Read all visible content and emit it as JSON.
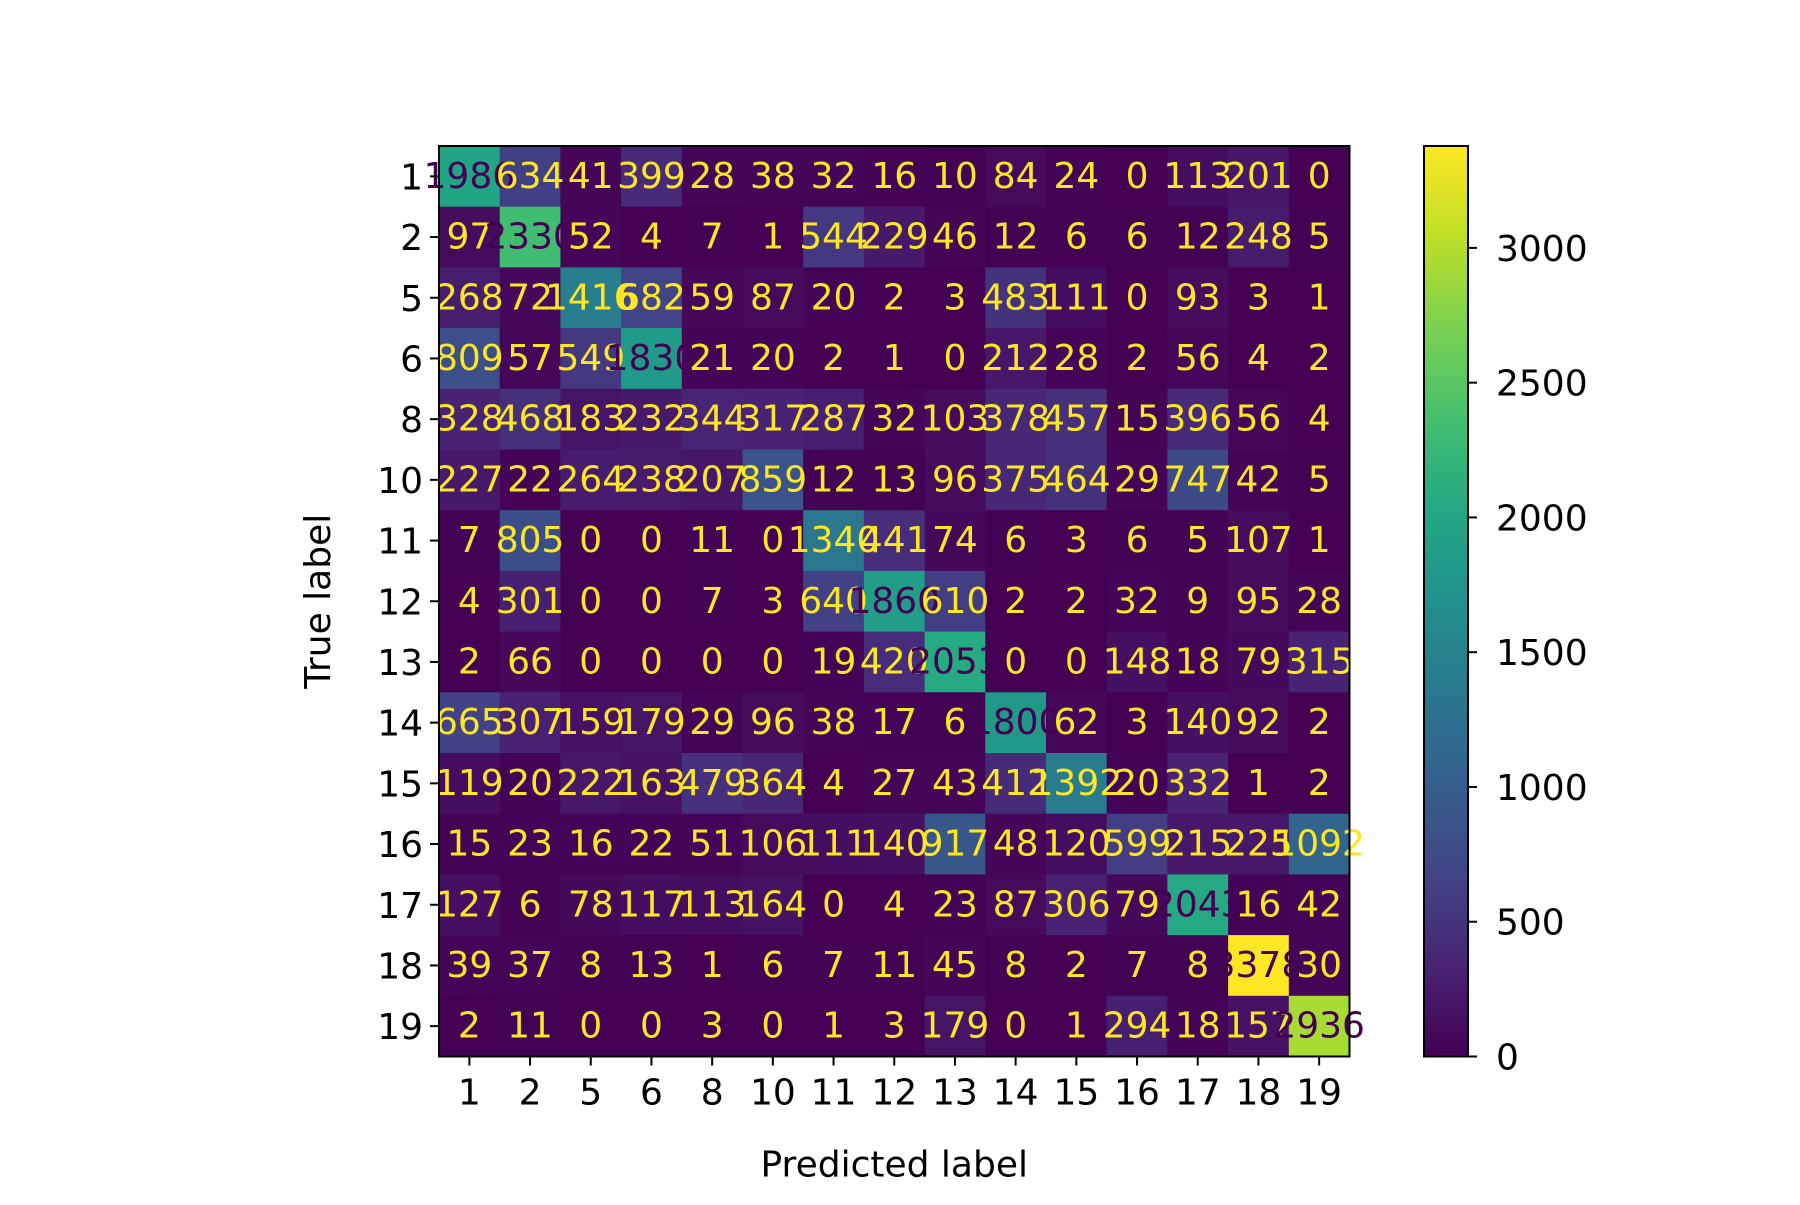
{
  "chart_data": {
    "type": "heatmap",
    "title": "",
    "xlabel": "Predicted label",
    "ylabel": "True label",
    "x_categories": [
      "1",
      "2",
      "5",
      "6",
      "8",
      "10",
      "11",
      "12",
      "13",
      "14",
      "15",
      "16",
      "17",
      "18",
      "19"
    ],
    "y_categories": [
      "1",
      "2",
      "5",
      "6",
      "8",
      "10",
      "11",
      "12",
      "13",
      "14",
      "15",
      "16",
      "17",
      "18",
      "19"
    ],
    "values": [
      [
        1986,
        634,
        41,
        399,
        28,
        38,
        32,
        16,
        10,
        84,
        24,
        0,
        113,
        201,
        0
      ],
      [
        97,
        2330,
        52,
        4,
        7,
        1,
        544,
        229,
        46,
        12,
        6,
        6,
        12,
        248,
        5
      ],
      [
        268,
        72,
        1416,
        682,
        59,
        87,
        20,
        2,
        3,
        483,
        111,
        0,
        93,
        3,
        1
      ],
      [
        809,
        57,
        549,
        1830,
        21,
        20,
        2,
        1,
        0,
        212,
        28,
        2,
        56,
        4,
        2
      ],
      [
        328,
        468,
        183,
        232,
        344,
        317,
        287,
        32,
        103,
        378,
        457,
        15,
        396,
        56,
        4
      ],
      [
        227,
        22,
        264,
        238,
        207,
        859,
        12,
        13,
        96,
        375,
        464,
        29,
        747,
        42,
        5
      ],
      [
        7,
        805,
        0,
        0,
        11,
        0,
        1340,
        441,
        74,
        6,
        3,
        6,
        5,
        107,
        1
      ],
      [
        4,
        301,
        0,
        0,
        7,
        3,
        640,
        1860,
        610,
        2,
        2,
        32,
        9,
        95,
        28
      ],
      [
        2,
        66,
        0,
        0,
        0,
        0,
        19,
        420,
        2053,
        0,
        0,
        148,
        18,
        79,
        315
      ],
      [
        665,
        307,
        159,
        179,
        29,
        96,
        38,
        17,
        6,
        1800,
        62,
        3,
        140,
        92,
        2
      ],
      [
        119,
        20,
        222,
        163,
        479,
        364,
        4,
        27,
        43,
        412,
        1392,
        20,
        332,
        1,
        2
      ],
      [
        15,
        23,
        16,
        22,
        51,
        106,
        111,
        140,
        917,
        48,
        120,
        599,
        215,
        225,
        1092
      ],
      [
        127,
        6,
        78,
        117,
        113,
        164,
        0,
        4,
        23,
        87,
        306,
        79,
        2043,
        16,
        42
      ],
      [
        39,
        37,
        8,
        13,
        1,
        6,
        7,
        11,
        45,
        8,
        2,
        7,
        8,
        3378,
        30
      ],
      [
        2,
        11,
        0,
        0,
        3,
        0,
        1,
        3,
        179,
        0,
        1,
        294,
        18,
        157,
        2936
      ]
    ],
    "colormap": "viridis",
    "value_range": [
      0,
      3378
    ],
    "colorbar_ticks": [
      "0",
      "500",
      "1000",
      "1500",
      "2000",
      "2500",
      "3000"
    ],
    "colorbar_tick_values": [
      0,
      500,
      1000,
      1500,
      2000,
      2500,
      3000
    ],
    "grid": false,
    "text_colors": {
      "light": "#fde725",
      "dark": "#440154"
    }
  }
}
